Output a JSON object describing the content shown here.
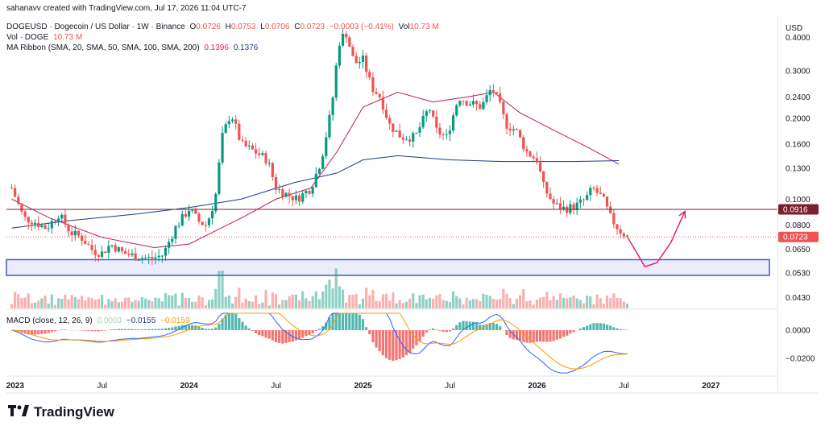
{
  "header": {
    "credit": "sahanavv created with TradingView.com, Jul 17, 2026 11:04 UTC-7",
    "symbol": "DOGEUSD · Dogecoin / US Dollar · 1W · Binance",
    "o_label": "O",
    "o": "0.0726",
    "h_label": "H",
    "h": "0.0753",
    "l_label": "L",
    "l": "0.0706",
    "c_label": "C",
    "c": "0.0723",
    "change": "−0.0003 (−0.41%)",
    "vol_label": "Vol",
    "vol": "10.73 M",
    "vol_line_label": "Vol · DOGE",
    "vol_line_value": "10.73 M",
    "ma_label": "MA Ribbon (SMA, 20, SMA, 50, SMA, 100, SMA, 200)",
    "ma_value1": "0.1396",
    "ma_value2": "0.1376",
    "macd_label": "MACD (close, 12, 26, 9)",
    "macd_v1": "0.0003",
    "macd_v2": "−0.0155",
    "macd_v3": "−0.0159"
  },
  "logo": {
    "text": "TradingView",
    "icon": "tradingview-logo-icon"
  },
  "colors": {
    "up": "#089981",
    "down": "#ef5350",
    "ma20": "#c2185b",
    "ma200": "#1e3a8a",
    "macd": "#2962ff",
    "signal": "#ff9800",
    "zone": "#3b5fc0",
    "arrow": "#e91e63",
    "resistance": "#7b1f2e"
  },
  "chart_data": {
    "type": "candlestick",
    "title": "DOGEUSD · Dogecoin / US Dollar · 1W · Binance",
    "currency_label": "USD",
    "scale": "log",
    "ylim": [
      0.04,
      0.48
    ],
    "price_ticks": [
      "0.4000",
      "0.3000",
      "0.2400",
      "0.2000",
      "0.1600",
      "0.1300",
      "0.1000",
      "0.0800",
      "0.0650",
      "0.0530",
      "0.0430"
    ],
    "price_tick_values": [
      0.4,
      0.3,
      0.24,
      0.2,
      0.16,
      0.13,
      0.1,
      0.08,
      0.065,
      0.053,
      0.043
    ],
    "time_ticks": [
      "2023",
      "Jul",
      "2024",
      "Jul",
      "2025",
      "Jul",
      "2026",
      "Jul",
      "2027"
    ],
    "time_tick_values": [
      2023.0,
      2023.5,
      2024.0,
      2024.5,
      2025.0,
      2025.5,
      2026.0,
      2026.5,
      2027.0
    ],
    "macd_ticks": [
      "0.0000",
      "−0.0200"
    ],
    "macd_tick_values": [
      0,
      -0.02
    ],
    "resistance": {
      "label": "0.0916",
      "value": 0.0916
    },
    "current_price": {
      "label": "0.0723",
      "value": 0.0723
    },
    "support_zone": [
      0.052,
      0.0595
    ],
    "projection": [
      [
        2026.52,
        0.0723
      ],
      [
        2026.62,
        0.056
      ],
      [
        2026.69,
        0.058
      ],
      [
        2026.77,
        0.069
      ],
      [
        2026.85,
        0.09
      ]
    ],
    "close_points": [
      [
        2022.98,
        0.11
      ],
      [
        2023.05,
        0.085
      ],
      [
        2023.1,
        0.083
      ],
      [
        2023.18,
        0.078
      ],
      [
        2023.25,
        0.088
      ],
      [
        2023.32,
        0.075
      ],
      [
        2023.38,
        0.072
      ],
      [
        2023.45,
        0.064
      ],
      [
        2023.5,
        0.063
      ],
      [
        2023.55,
        0.068
      ],
      [
        2023.62,
        0.063
      ],
      [
        2023.7,
        0.061
      ],
      [
        2023.78,
        0.06
      ],
      [
        2023.85,
        0.062
      ],
      [
        2023.92,
        0.078
      ],
      [
        2024.0,
        0.092
      ],
      [
        2024.06,
        0.082
      ],
      [
        2024.1,
        0.08
      ],
      [
        2024.15,
        0.1
      ],
      [
        2024.19,
        0.17
      ],
      [
        2024.24,
        0.21
      ],
      [
        2024.3,
        0.16
      ],
      [
        2024.38,
        0.15
      ],
      [
        2024.45,
        0.14
      ],
      [
        2024.5,
        0.11
      ],
      [
        2024.55,
        0.105
      ],
      [
        2024.62,
        0.1
      ],
      [
        2024.7,
        0.11
      ],
      [
        2024.76,
        0.14
      ],
      [
        2024.82,
        0.22
      ],
      [
        2024.86,
        0.38
      ],
      [
        2024.9,
        0.42
      ],
      [
        2024.95,
        0.32
      ],
      [
        2025.0,
        0.33
      ],
      [
        2025.05,
        0.26
      ],
      [
        2025.1,
        0.24
      ],
      [
        2025.15,
        0.19
      ],
      [
        2025.22,
        0.17
      ],
      [
        2025.3,
        0.17
      ],
      [
        2025.38,
        0.22
      ],
      [
        2025.42,
        0.18
      ],
      [
        2025.48,
        0.17
      ],
      [
        2025.55,
        0.24
      ],
      [
        2025.6,
        0.23
      ],
      [
        2025.68,
        0.22
      ],
      [
        2025.74,
        0.26
      ],
      [
        2025.78,
        0.23
      ],
      [
        2025.82,
        0.19
      ],
      [
        2025.88,
        0.18
      ],
      [
        2025.94,
        0.15
      ],
      [
        2026.0,
        0.14
      ],
      [
        2026.04,
        0.11
      ],
      [
        2026.1,
        0.095
      ],
      [
        2026.16,
        0.092
      ],
      [
        2026.22,
        0.094
      ],
      [
        2026.28,
        0.1
      ],
      [
        2026.32,
        0.11
      ],
      [
        2026.38,
        0.1
      ],
      [
        2026.42,
        0.086
      ],
      [
        2026.47,
        0.077
      ],
      [
        2026.52,
        0.0723
      ]
    ],
    "series": [
      {
        "name": "SMA 20/50 ribbon",
        "points": [
          [
            2022.98,
            0.1
          ],
          [
            2023.2,
            0.085
          ],
          [
            2023.5,
            0.072
          ],
          [
            2023.8,
            0.066
          ],
          [
            2024.0,
            0.068
          ],
          [
            2024.3,
            0.085
          ],
          [
            2024.5,
            0.1
          ],
          [
            2024.7,
            0.11
          ],
          [
            2024.85,
            0.15
          ],
          [
            2025.0,
            0.22
          ],
          [
            2025.2,
            0.25
          ],
          [
            2025.4,
            0.23
          ],
          [
            2025.6,
            0.24
          ],
          [
            2025.75,
            0.25
          ],
          [
            2025.9,
            0.21
          ],
          [
            2026.1,
            0.18
          ],
          [
            2026.3,
            0.155
          ],
          [
            2026.47,
            0.135
          ]
        ]
      },
      {
        "name": "SMA 200",
        "points": [
          [
            2022.98,
            0.078
          ],
          [
            2023.3,
            0.083
          ],
          [
            2023.7,
            0.088
          ],
          [
            2024.0,
            0.093
          ],
          [
            2024.3,
            0.1
          ],
          [
            2024.6,
            0.115
          ],
          [
            2024.85,
            0.125
          ],
          [
            2025.0,
            0.14
          ],
          [
            2025.2,
            0.145
          ],
          [
            2025.5,
            0.14
          ],
          [
            2025.8,
            0.138
          ],
          [
            2026.2,
            0.138
          ],
          [
            2026.47,
            0.139
          ]
        ]
      }
    ]
  }
}
